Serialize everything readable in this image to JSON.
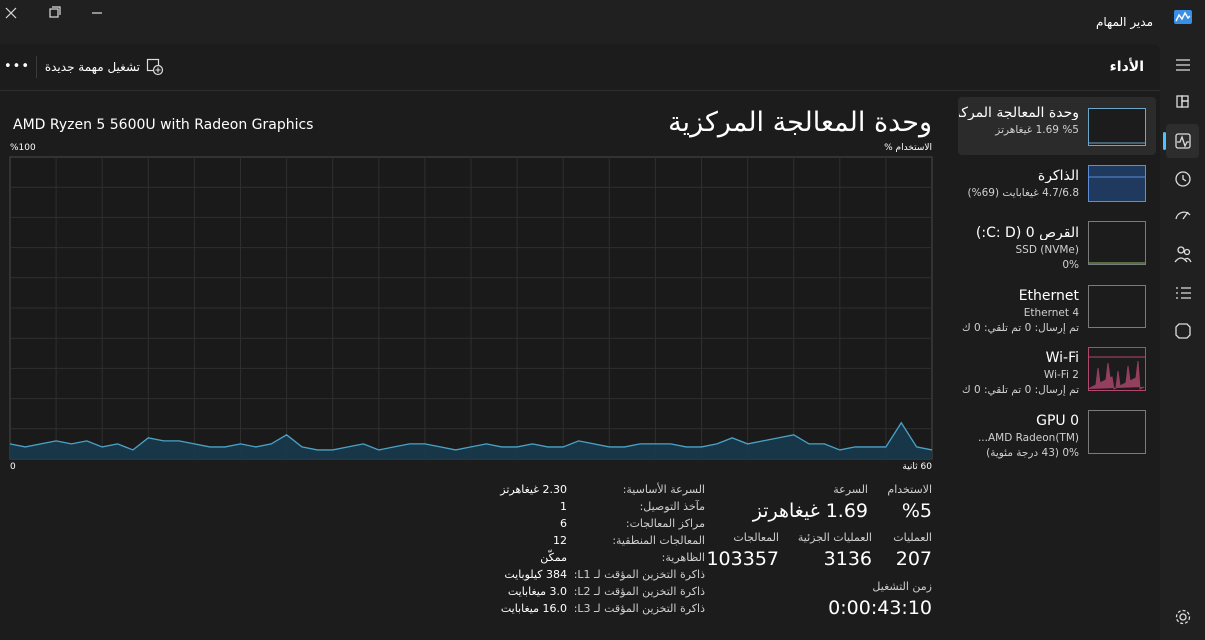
{
  "window": {
    "title": "مدير المهام"
  },
  "toolbar": {
    "page": "الأداء",
    "run_task": "تشغيل مهمة جديدة",
    "more": "•••"
  },
  "sidebar": [
    {
      "title": "وحدة المعالجة المركزية",
      "lines": [
        "%5  1.69 غيغاهرتز"
      ]
    },
    {
      "title": "الذاكرة",
      "lines": [
        "4.7/6.8 غيغابايت (69%)"
      ]
    },
    {
      "title": "القرص 0 (C: D:)",
      "lines": [
        "SSD (NVMe)",
        "0%"
      ]
    },
    {
      "title": "Ethernet",
      "lines": [
        "Ethernet 4",
        "تم إرسال: 0 تم تلقي: 0 ك"
      ]
    },
    {
      "title": "Wi-Fi",
      "lines": [
        "Wi-Fi 2",
        "تم إرسال: 0 تم تلقي: 0 ك"
      ]
    },
    {
      "title": "GPU 0",
      "lines": [
        "AMD Radeon(TM)...",
        "0% (43 درجة مئوية)"
      ]
    }
  ],
  "header": {
    "title": "وحدة المعالجة المركزية",
    "model": "AMD Ryzen 5 5600U with Radeon Graphics"
  },
  "graph": {
    "y_label": "الاستخدام %",
    "y_max_label": "%100",
    "x_left_label": "0",
    "x_right_label": "60 ثانية",
    "ylim": [
      0,
      100
    ],
    "values": [
      5,
      4,
      5,
      6,
      5,
      6,
      4,
      5,
      3,
      7,
      6,
      6,
      5,
      4,
      4,
      5,
      4,
      5,
      8,
      4,
      3,
      3,
      4,
      5,
      3,
      4,
      5,
      5,
      4,
      3,
      4,
      5,
      4,
      4,
      5,
      4,
      4,
      6,
      5,
      4,
      4,
      5,
      5,
      5,
      4,
      4,
      5,
      7,
      5,
      6,
      7,
      8,
      5,
      5,
      3,
      4,
      4,
      4,
      12,
      4,
      3
    ]
  },
  "stats": {
    "usage": {
      "label": "الاستخدام",
      "value": "%5"
    },
    "speed": {
      "label": "السرعة",
      "value": "1.69 غيغاهرتز"
    },
    "processes": {
      "label": "العمليات",
      "value": "207"
    },
    "threads": {
      "label": "العمليات الجزئية",
      "value": "3136"
    },
    "handles": {
      "label": "المعالجات",
      "value": "103357"
    },
    "uptime": {
      "label": "زمن التشغيل",
      "value": "0:00:43:10"
    }
  },
  "details": [
    [
      "السرعة الأساسية:",
      "2.30 غيغاهرتز"
    ],
    [
      "مآخذ التوصيل:",
      "1"
    ],
    [
      "مراكز المعالجات:",
      "6"
    ],
    [
      "المعالجات المنطقية:",
      "12"
    ],
    [
      "الظاهرية:",
      "ممكّن"
    ],
    [
      "ذاكرة التخزين المؤقت لـ L1:",
      "384 كيلوبايت"
    ],
    [
      "ذاكرة التخزين المؤقت لـ L2:",
      "3.0 ميغابايت"
    ],
    [
      "ذاكرة التخزين المؤقت لـ L3:",
      "16.0 ميغابايت"
    ]
  ]
}
